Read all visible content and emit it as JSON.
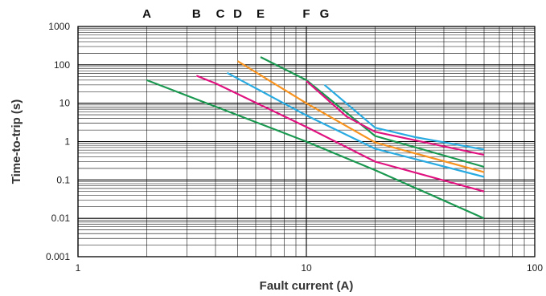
{
  "chart_data": {
    "type": "line",
    "title": "",
    "xlabel": "Fault current (A)",
    "ylabel": "Time-to-trip (s)",
    "x_scale": "log",
    "y_scale": "log",
    "xlim": [
      1,
      100
    ],
    "ylim": [
      0.001,
      1000
    ],
    "grid": true,
    "x_ticks": [
      1,
      10,
      100
    ],
    "x_tick_labels": [
      "1",
      "10",
      "100"
    ],
    "y_ticks": [
      0.001,
      0.01,
      0.1,
      1,
      10,
      100,
      1000
    ],
    "y_tick_labels": [
      "0.001",
      "0.01",
      "0.1",
      "1",
      "10",
      "100",
      "1000"
    ],
    "curve_labels": [
      {
        "text": "A",
        "x": 2.0
      },
      {
        "text": "B",
        "x": 3.3
      },
      {
        "text": "C",
        "x": 4.2
      },
      {
        "text": "D",
        "x": 5.0
      },
      {
        "text": "E",
        "x": 6.3
      },
      {
        "text": "F",
        "x": 10.0
      },
      {
        "text": "G",
        "x": 12.0
      }
    ],
    "series": [
      {
        "color": "#1a9850",
        "points": [
          [
            2.0,
            40
          ],
          [
            10,
            1.0
          ],
          [
            20,
            0.18
          ],
          [
            60,
            0.01
          ]
        ]
      },
      {
        "color": "#e0127f",
        "points": [
          [
            3.3,
            52
          ],
          [
            4,
            33
          ],
          [
            10,
            2.4
          ],
          [
            20,
            0.3
          ],
          [
            60,
            0.05
          ]
        ]
      },
      {
        "color": "#29abe2",
        "points": [
          [
            4.5,
            62
          ],
          [
            10,
            4.8
          ],
          [
            20,
            0.65
          ],
          [
            60,
            0.12
          ]
        ]
      },
      {
        "color": "#f7931e",
        "points": [
          [
            5.0,
            125
          ],
          [
            10,
            10
          ],
          [
            20,
            0.95
          ],
          [
            60,
            0.16
          ]
        ]
      },
      {
        "color": "#1a9850",
        "points": [
          [
            6.3,
            160
          ],
          [
            10,
            40
          ],
          [
            20,
            1.4
          ],
          [
            60,
            0.22
          ]
        ]
      },
      {
        "color": "#e0127f",
        "points": [
          [
            10,
            38
          ],
          [
            15,
            4.5
          ],
          [
            20,
            1.8
          ],
          [
            60,
            0.45
          ]
        ]
      },
      {
        "color": "#29abe2",
        "points": [
          [
            12,
            30
          ],
          [
            20,
            2.3
          ],
          [
            30,
            1.3
          ],
          [
            60,
            0.62
          ]
        ]
      }
    ]
  }
}
